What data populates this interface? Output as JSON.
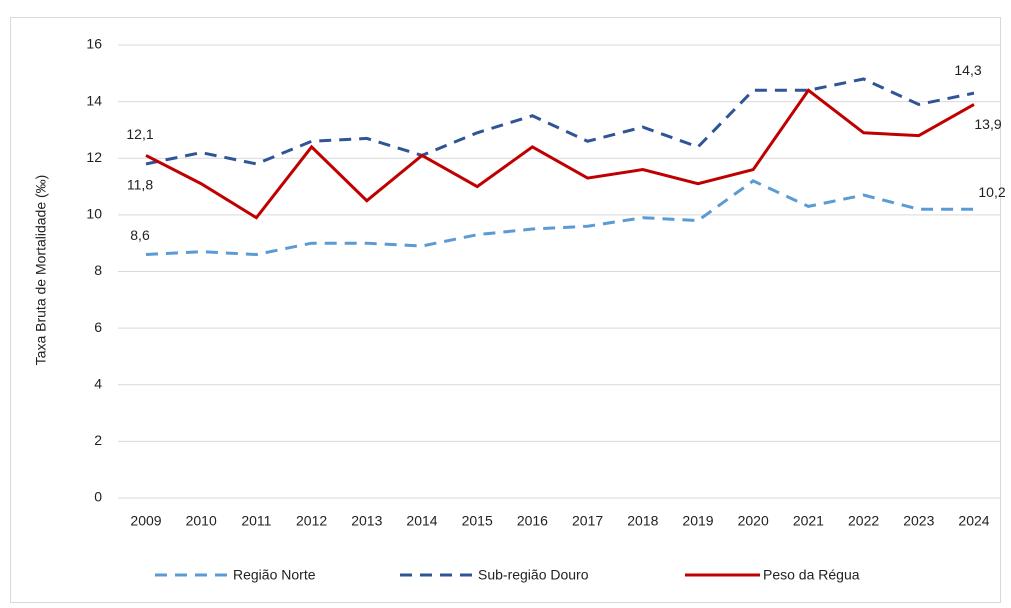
{
  "chart_data": {
    "type": "line",
    "y_label": "Taxa Bruta de Mortalidade (‰)",
    "categories": [
      "2009",
      "2010",
      "2011",
      "2012",
      "2013",
      "2014",
      "2015",
      "2016",
      "2017",
      "2018",
      "2019",
      "2020",
      "2021",
      "2022",
      "2023",
      "2024"
    ],
    "series": [
      {
        "name": "Região Norte",
        "color": "#5b9bd5",
        "dash": true,
        "values": [
          8.6,
          8.7,
          8.6,
          9.0,
          9.0,
          8.9,
          9.3,
          9.5,
          9.6,
          9.9,
          9.8,
          11.2,
          10.3,
          10.7,
          10.2,
          10.2
        ],
        "value_labels": [
          "8,6",
          null,
          null,
          null,
          null,
          null,
          null,
          null,
          null,
          null,
          null,
          null,
          null,
          null,
          null,
          "10,2"
        ]
      },
      {
        "name": "Sub-região Douro",
        "color": "#2f5597",
        "dash": true,
        "values": [
          11.8,
          12.2,
          11.8,
          12.6,
          12.7,
          12.1,
          12.9,
          13.5,
          12.6,
          13.1,
          12.4,
          14.4,
          14.4,
          14.8,
          13.9,
          14.3
        ],
        "value_labels": [
          "11,8",
          null,
          null,
          null,
          null,
          null,
          null,
          null,
          null,
          null,
          null,
          null,
          null,
          null,
          null,
          "14,3"
        ]
      },
      {
        "name": "Peso da Régua",
        "color": "#c00000",
        "dash": false,
        "values": [
          12.1,
          11.1,
          9.9,
          12.4,
          10.5,
          12.1,
          11.0,
          12.4,
          11.3,
          11.6,
          11.1,
          11.6,
          14.4,
          12.9,
          12.8,
          13.9
        ],
        "value_labels": [
          "12,1",
          null,
          null,
          null,
          null,
          null,
          null,
          null,
          null,
          null,
          null,
          null,
          null,
          null,
          null,
          "13,9"
        ]
      }
    ],
    "ylim": [
      0,
      16
    ],
    "yticks": [
      0,
      2,
      4,
      6,
      8,
      10,
      12,
      14,
      16
    ],
    "grid": true
  }
}
